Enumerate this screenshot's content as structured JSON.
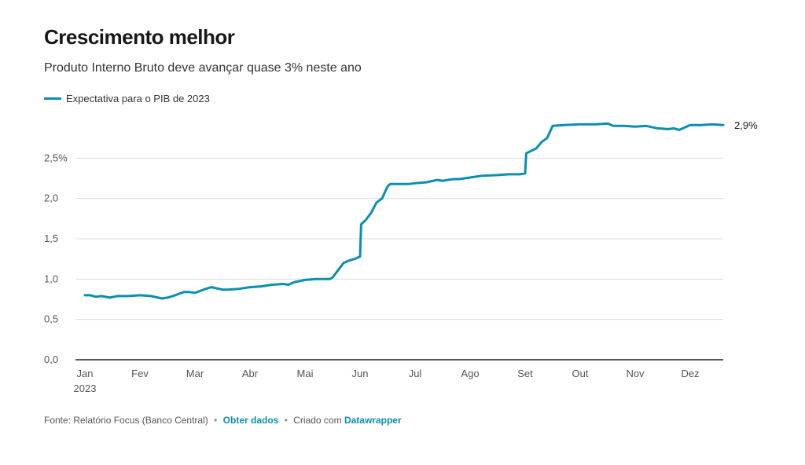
{
  "header": {
    "title": "Crescimento melhor",
    "subtitle": "Produto Interno Bruto deve avançar quase 3% neste ano"
  },
  "legend": {
    "label": "Expectativa para o PIB de 2023",
    "color": "#0b8fb0"
  },
  "footer": {
    "source": "Fonte: Relatório Focus (Banco Central)",
    "sep": "•",
    "get_data": "Obter dados",
    "created_with": "Criado com",
    "tool": "Datawrapper"
  },
  "chart_data": {
    "type": "line",
    "title": "Crescimento melhor",
    "subtitle": "Produto Interno Bruto deve avançar quase 3% neste ano",
    "x_ticks": [
      "Jan",
      "Fev",
      "Mar",
      "Abr",
      "Mai",
      "Jun",
      "Jul",
      "Ago",
      "Set",
      "Out",
      "Nov",
      "Dez"
    ],
    "x_year_label": "2023",
    "y_ticks": [
      "0,0",
      "0,5",
      "1,0",
      "1,5",
      "2,0",
      "2,5%"
    ],
    "y_tick_values": [
      0,
      0.5,
      1.0,
      1.5,
      2.0,
      2.5
    ],
    "ylim": [
      0,
      3.0
    ],
    "xlim": [
      0,
      11.6
    ],
    "end_label": "2,9%",
    "grid": true,
    "series": [
      {
        "name": "Expectativa para o PIB de 2023",
        "color": "#0b8fb0",
        "x": [
          0.0,
          0.1,
          0.2,
          0.3,
          0.45,
          0.6,
          0.8,
          1.0,
          1.2,
          1.4,
          1.5,
          1.6,
          1.8,
          1.9,
          2.0,
          2.2,
          2.3,
          2.5,
          2.6,
          2.8,
          3.0,
          3.2,
          3.4,
          3.6,
          3.7,
          3.8,
          4.0,
          4.2,
          4.3,
          4.45,
          4.5,
          4.7,
          4.8,
          4.9,
          5.0,
          5.02,
          5.1,
          5.2,
          5.3,
          5.4,
          5.5,
          5.55,
          5.7,
          5.9,
          6.0,
          6.2,
          6.4,
          6.5,
          6.7,
          6.8,
          7.0,
          7.2,
          7.5,
          7.7,
          7.9,
          8.0,
          8.02,
          8.2,
          8.3,
          8.4,
          8.5,
          8.7,
          9.0,
          9.3,
          9.5,
          9.6,
          9.8,
          10.0,
          10.2,
          10.4,
          10.6,
          10.7,
          10.8,
          10.9,
          11.0,
          11.2,
          11.4,
          11.6
        ],
        "y": [
          0.8,
          0.8,
          0.78,
          0.79,
          0.77,
          0.79,
          0.79,
          0.8,
          0.79,
          0.76,
          0.77,
          0.79,
          0.84,
          0.84,
          0.83,
          0.88,
          0.9,
          0.87,
          0.87,
          0.88,
          0.9,
          0.91,
          0.93,
          0.94,
          0.93,
          0.96,
          0.99,
          1.0,
          1.0,
          1.0,
          1.02,
          1.2,
          1.23,
          1.25,
          1.28,
          1.68,
          1.73,
          1.82,
          1.95,
          2.0,
          2.15,
          2.18,
          2.18,
          2.18,
          2.19,
          2.2,
          2.23,
          2.22,
          2.24,
          2.24,
          2.26,
          2.28,
          2.29,
          2.3,
          2.3,
          2.31,
          2.56,
          2.62,
          2.7,
          2.75,
          2.9,
          2.91,
          2.92,
          2.92,
          2.93,
          2.9,
          2.9,
          2.89,
          2.9,
          2.87,
          2.86,
          2.87,
          2.85,
          2.88,
          2.91,
          2.91,
          2.92,
          2.91
        ]
      }
    ]
  }
}
